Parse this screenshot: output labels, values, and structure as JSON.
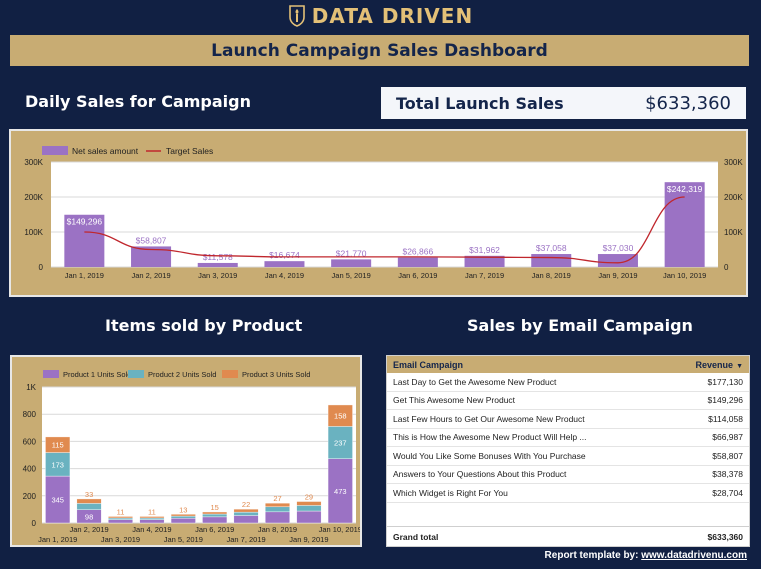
{
  "brand": {
    "name": "DATA DRIVEN",
    "icon": "torch-shield-icon"
  },
  "header": {
    "title": "Launch Campaign Sales Dashboard"
  },
  "daily_heading": "Daily Sales for Campaign",
  "kpi": {
    "label": "Total Launch Sales",
    "value": "$633,360"
  },
  "items_heading": "Items sold by Product",
  "email_heading": "Sales by Email Campaign",
  "colors": {
    "background": "#112043",
    "gold": "#c8ac73",
    "purple": "#9b72c4",
    "teal": "#6ab2c0",
    "orange": "#e08a4f",
    "target": "#c0272d"
  },
  "chart_data": [
    {
      "type": "bar",
      "categories": [
        "Jan 1, 2019",
        "Jan 2, 2019",
        "Jan 3, 2019",
        "Jan 4, 2019",
        "Jan 5, 2019",
        "Jan 6, 2019",
        "Jan 7, 2019",
        "Jan 8, 2019",
        "Jan 9, 2019",
        "Jan 10, 2019"
      ],
      "series": [
        {
          "name": "Net sales amount",
          "kind": "bar",
          "values": [
            149296,
            58807,
            11578,
            16674,
            21770,
            26866,
            31962,
            37058,
            37030,
            242319
          ],
          "labels": [
            "$149,296",
            "$58,807",
            "$11,578",
            "$16,674",
            "$21,770",
            "$26,866",
            "$31,962",
            "$37,058",
            "$37,030",
            "$242,319"
          ]
        },
        {
          "name": "Target Sales",
          "kind": "line",
          "values": [
            100000,
            50000,
            32000,
            29000,
            29000,
            29000,
            28000,
            27000,
            12000,
            200000
          ]
        }
      ],
      "y_ticks": [
        "0",
        "100K",
        "200K",
        "300K"
      ],
      "ylim": [
        0,
        300000
      ],
      "legend_position": "top-left",
      "dual_axis": true
    },
    {
      "type": "bar",
      "stacked": true,
      "categories": [
        "Jan 1, 2019",
        "Jan 2, 2019",
        "Jan 3, 2019",
        "Jan 4, 2019",
        "Jan 5, 2019",
        "Jan 6, 2019",
        "Jan 7, 2019",
        "Jan 8, 2019",
        "Jan 9, 2019",
        "Jan 10, 2019"
      ],
      "series": [
        {
          "name": "Product 1 Units Sold",
          "values": [
            345,
            98,
            25,
            25,
            35,
            45,
            55,
            82,
            88,
            473
          ],
          "labels": [
            "345",
            "98",
            "",
            "",
            "",
            "",
            "",
            "82",
            "88",
            "473"
          ]
        },
        {
          "name": "Product 2 Units Sold",
          "values": [
            173,
            46,
            12,
            12,
            16,
            21,
            25,
            37,
            41,
            237
          ],
          "labels": [
            "173",
            "",
            "",
            "",
            "",
            "",
            "",
            "",
            "",
            "237"
          ]
        },
        {
          "name": "Product 3 Units Sold",
          "values": [
            115,
            33,
            11,
            11,
            13,
            15,
            22,
            27,
            29,
            158
          ],
          "labels": [
            "115",
            "33",
            "11",
            "11",
            "13",
            "15",
            "22",
            "27",
            "29",
            "158"
          ]
        }
      ],
      "y_ticks": [
        "0",
        "200",
        "400",
        "600",
        "800",
        "1K"
      ],
      "ylim": [
        0,
        1000
      ],
      "legend_position": "top-left"
    }
  ],
  "email_table": {
    "col_campaign": "Email Campaign",
    "col_revenue": "Revenue",
    "rows": [
      {
        "campaign": "Last Day to Get the Awesome New Product",
        "revenue": "$177,130"
      },
      {
        "campaign": "Get This Awesome New Product",
        "revenue": "$149,296"
      },
      {
        "campaign": "Last Few Hours to Get Our Awesome New Product",
        "revenue": "$114,058"
      },
      {
        "campaign": "This is How the Awesome New Product Will Help ...",
        "revenue": "$66,987"
      },
      {
        "campaign": "Would You Like Some Bonuses With You Purchase",
        "revenue": "$58,807"
      },
      {
        "campaign": "Answers to Your Questions About this Product",
        "revenue": "$38,378"
      },
      {
        "campaign": "Which Widget is Right For You",
        "revenue": "$28,704"
      }
    ],
    "total_label": "Grand total",
    "total_value": "$633,360"
  },
  "footer": {
    "prefix": "Report template by: ",
    "link": "www.datadrivenu.com"
  }
}
